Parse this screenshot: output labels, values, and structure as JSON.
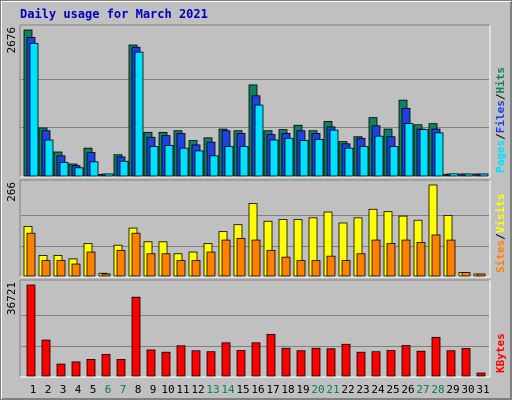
{
  "header": {
    "title": "Daily usage for March 2021"
  },
  "colors": {
    "background": "#c0c0c0",
    "title": "#0000c0",
    "pages": "#00e0ff",
    "files": "#2040e0",
    "hits": "#108060",
    "visits": "#ffff00",
    "sites": "#ff8000",
    "kbytes": "#ff0000",
    "weekend_label": "#007f5f",
    "weekday_label": "#000000"
  },
  "chart_data": [
    {
      "type": "bar",
      "panel": "top",
      "max_label": "2676",
      "ylim": [
        0,
        2676
      ],
      "legend": [
        {
          "name": "Pages",
          "color": "#00e0ff"
        },
        {
          "name": "Files",
          "color": "#2040e0"
        },
        {
          "name": "Hits",
          "color": "#108060"
        }
      ],
      "categories": [
        "1",
        "2",
        "3",
        "4",
        "5",
        "6",
        "7",
        "8",
        "9",
        "10",
        "11",
        "12",
        "13",
        "14",
        "15",
        "16",
        "17",
        "18",
        "19",
        "20",
        "21",
        "22",
        "23",
        "24",
        "25",
        "26",
        "27",
        "28",
        "29",
        "30",
        "31"
      ],
      "series": [
        {
          "name": "Hits",
          "values": [
            2676,
            880,
            440,
            220,
            510,
            30,
            390,
            2400,
            800,
            800,
            830,
            650,
            700,
            860,
            830,
            1670,
            830,
            850,
            930,
            830,
            1000,
            630,
            720,
            1070,
            860,
            1390,
            940,
            960,
            30,
            0,
            0
          ]
        },
        {
          "name": "Files",
          "values": [
            2540,
            830,
            370,
            190,
            430,
            0,
            350,
            2360,
            710,
            740,
            780,
            570,
            620,
            830,
            780,
            1470,
            760,
            780,
            830,
            780,
            900,
            590,
            690,
            920,
            720,
            1240,
            860,
            860,
            0,
            0,
            0
          ]
        },
        {
          "name": "Pages",
          "values": [
            2430,
            660,
            250,
            150,
            260,
            0,
            270,
            2270,
            540,
            560,
            510,
            460,
            370,
            540,
            540,
            1300,
            660,
            690,
            650,
            670,
            840,
            510,
            540,
            730,
            540,
            960,
            850,
            790,
            40,
            0,
            0
          ]
        }
      ]
    },
    {
      "type": "bar",
      "panel": "middle",
      "max_label": "266",
      "ylim": [
        0,
        266
      ],
      "legend": [
        {
          "name": "Sites",
          "color": "#ff8000"
        },
        {
          "name": "Visits",
          "color": "#ffff00"
        }
      ],
      "categories": [
        "1",
        "2",
        "3",
        "4",
        "5",
        "6",
        "7",
        "8",
        "9",
        "10",
        "11",
        "12",
        "13",
        "14",
        "15",
        "16",
        "17",
        "18",
        "19",
        "20",
        "21",
        "22",
        "23",
        "24",
        "25",
        "26",
        "27",
        "28",
        "29",
        "30",
        "31"
      ],
      "series": [
        {
          "name": "Visits",
          "values": [
            145,
            60,
            60,
            50,
            95,
            8,
            90,
            140,
            100,
            100,
            65,
            70,
            95,
            130,
            150,
            212,
            160,
            165,
            165,
            170,
            187,
            155,
            170,
            195,
            188,
            175,
            163,
            266,
            177,
            10,
            0
          ]
        },
        {
          "name": "Sites",
          "values": [
            125,
            45,
            45,
            35,
            70,
            6,
            75,
            125,
            65,
            65,
            45,
            45,
            70,
            105,
            110,
            105,
            75,
            55,
            45,
            45,
            58,
            45,
            65,
            105,
            95,
            105,
            98,
            120,
            105,
            10,
            0
          ]
        }
      ]
    },
    {
      "type": "bar",
      "panel": "bottom",
      "max_label": "36721",
      "ylim": [
        0,
        36721
      ],
      "legend": [
        {
          "name": "KBytes",
          "color": "#ff0000"
        }
      ],
      "categories": [
        "1",
        "2",
        "3",
        "4",
        "5",
        "6",
        "7",
        "8",
        "9",
        "10",
        "11",
        "12",
        "13",
        "14",
        "15",
        "16",
        "17",
        "18",
        "19",
        "20",
        "21",
        "22",
        "23",
        "24",
        "25",
        "26",
        "27",
        "28",
        "29",
        "30",
        "31"
      ],
      "series": [
        {
          "name": "KBytes",
          "values": [
            36721,
            14500,
            4800,
            5700,
            6700,
            8700,
            6700,
            31800,
            10500,
            9600,
            12200,
            10200,
            9800,
            13400,
            10300,
            13400,
            16800,
            11200,
            10200,
            11200,
            11000,
            12800,
            9600,
            9800,
            10300,
            12300,
            10000,
            15600,
            10200,
            11100,
            1200
          ]
        }
      ]
    }
  ],
  "x_axis": {
    "days": [
      {
        "label": "1",
        "weekend": false
      },
      {
        "label": "2",
        "weekend": false
      },
      {
        "label": "3",
        "weekend": false
      },
      {
        "label": "4",
        "weekend": false
      },
      {
        "label": "5",
        "weekend": false
      },
      {
        "label": "6",
        "weekend": true
      },
      {
        "label": "7",
        "weekend": true
      },
      {
        "label": "8",
        "weekend": false
      },
      {
        "label": "9",
        "weekend": false
      },
      {
        "label": "10",
        "weekend": false
      },
      {
        "label": "11",
        "weekend": false
      },
      {
        "label": "12",
        "weekend": false
      },
      {
        "label": "13",
        "weekend": true
      },
      {
        "label": "14",
        "weekend": true
      },
      {
        "label": "15",
        "weekend": false
      },
      {
        "label": "16",
        "weekend": false
      },
      {
        "label": "17",
        "weekend": false
      },
      {
        "label": "18",
        "weekend": false
      },
      {
        "label": "19",
        "weekend": false
      },
      {
        "label": "20",
        "weekend": true
      },
      {
        "label": "21",
        "weekend": true
      },
      {
        "label": "22",
        "weekend": false
      },
      {
        "label": "23",
        "weekend": false
      },
      {
        "label": "24",
        "weekend": false
      },
      {
        "label": "25",
        "weekend": false
      },
      {
        "label": "26",
        "weekend": false
      },
      {
        "label": "27",
        "weekend": true
      },
      {
        "label": "28",
        "weekend": true
      },
      {
        "label": "29",
        "weekend": false
      },
      {
        "label": "30",
        "weekend": false
      },
      {
        "label": "31",
        "weekend": false
      }
    ]
  }
}
